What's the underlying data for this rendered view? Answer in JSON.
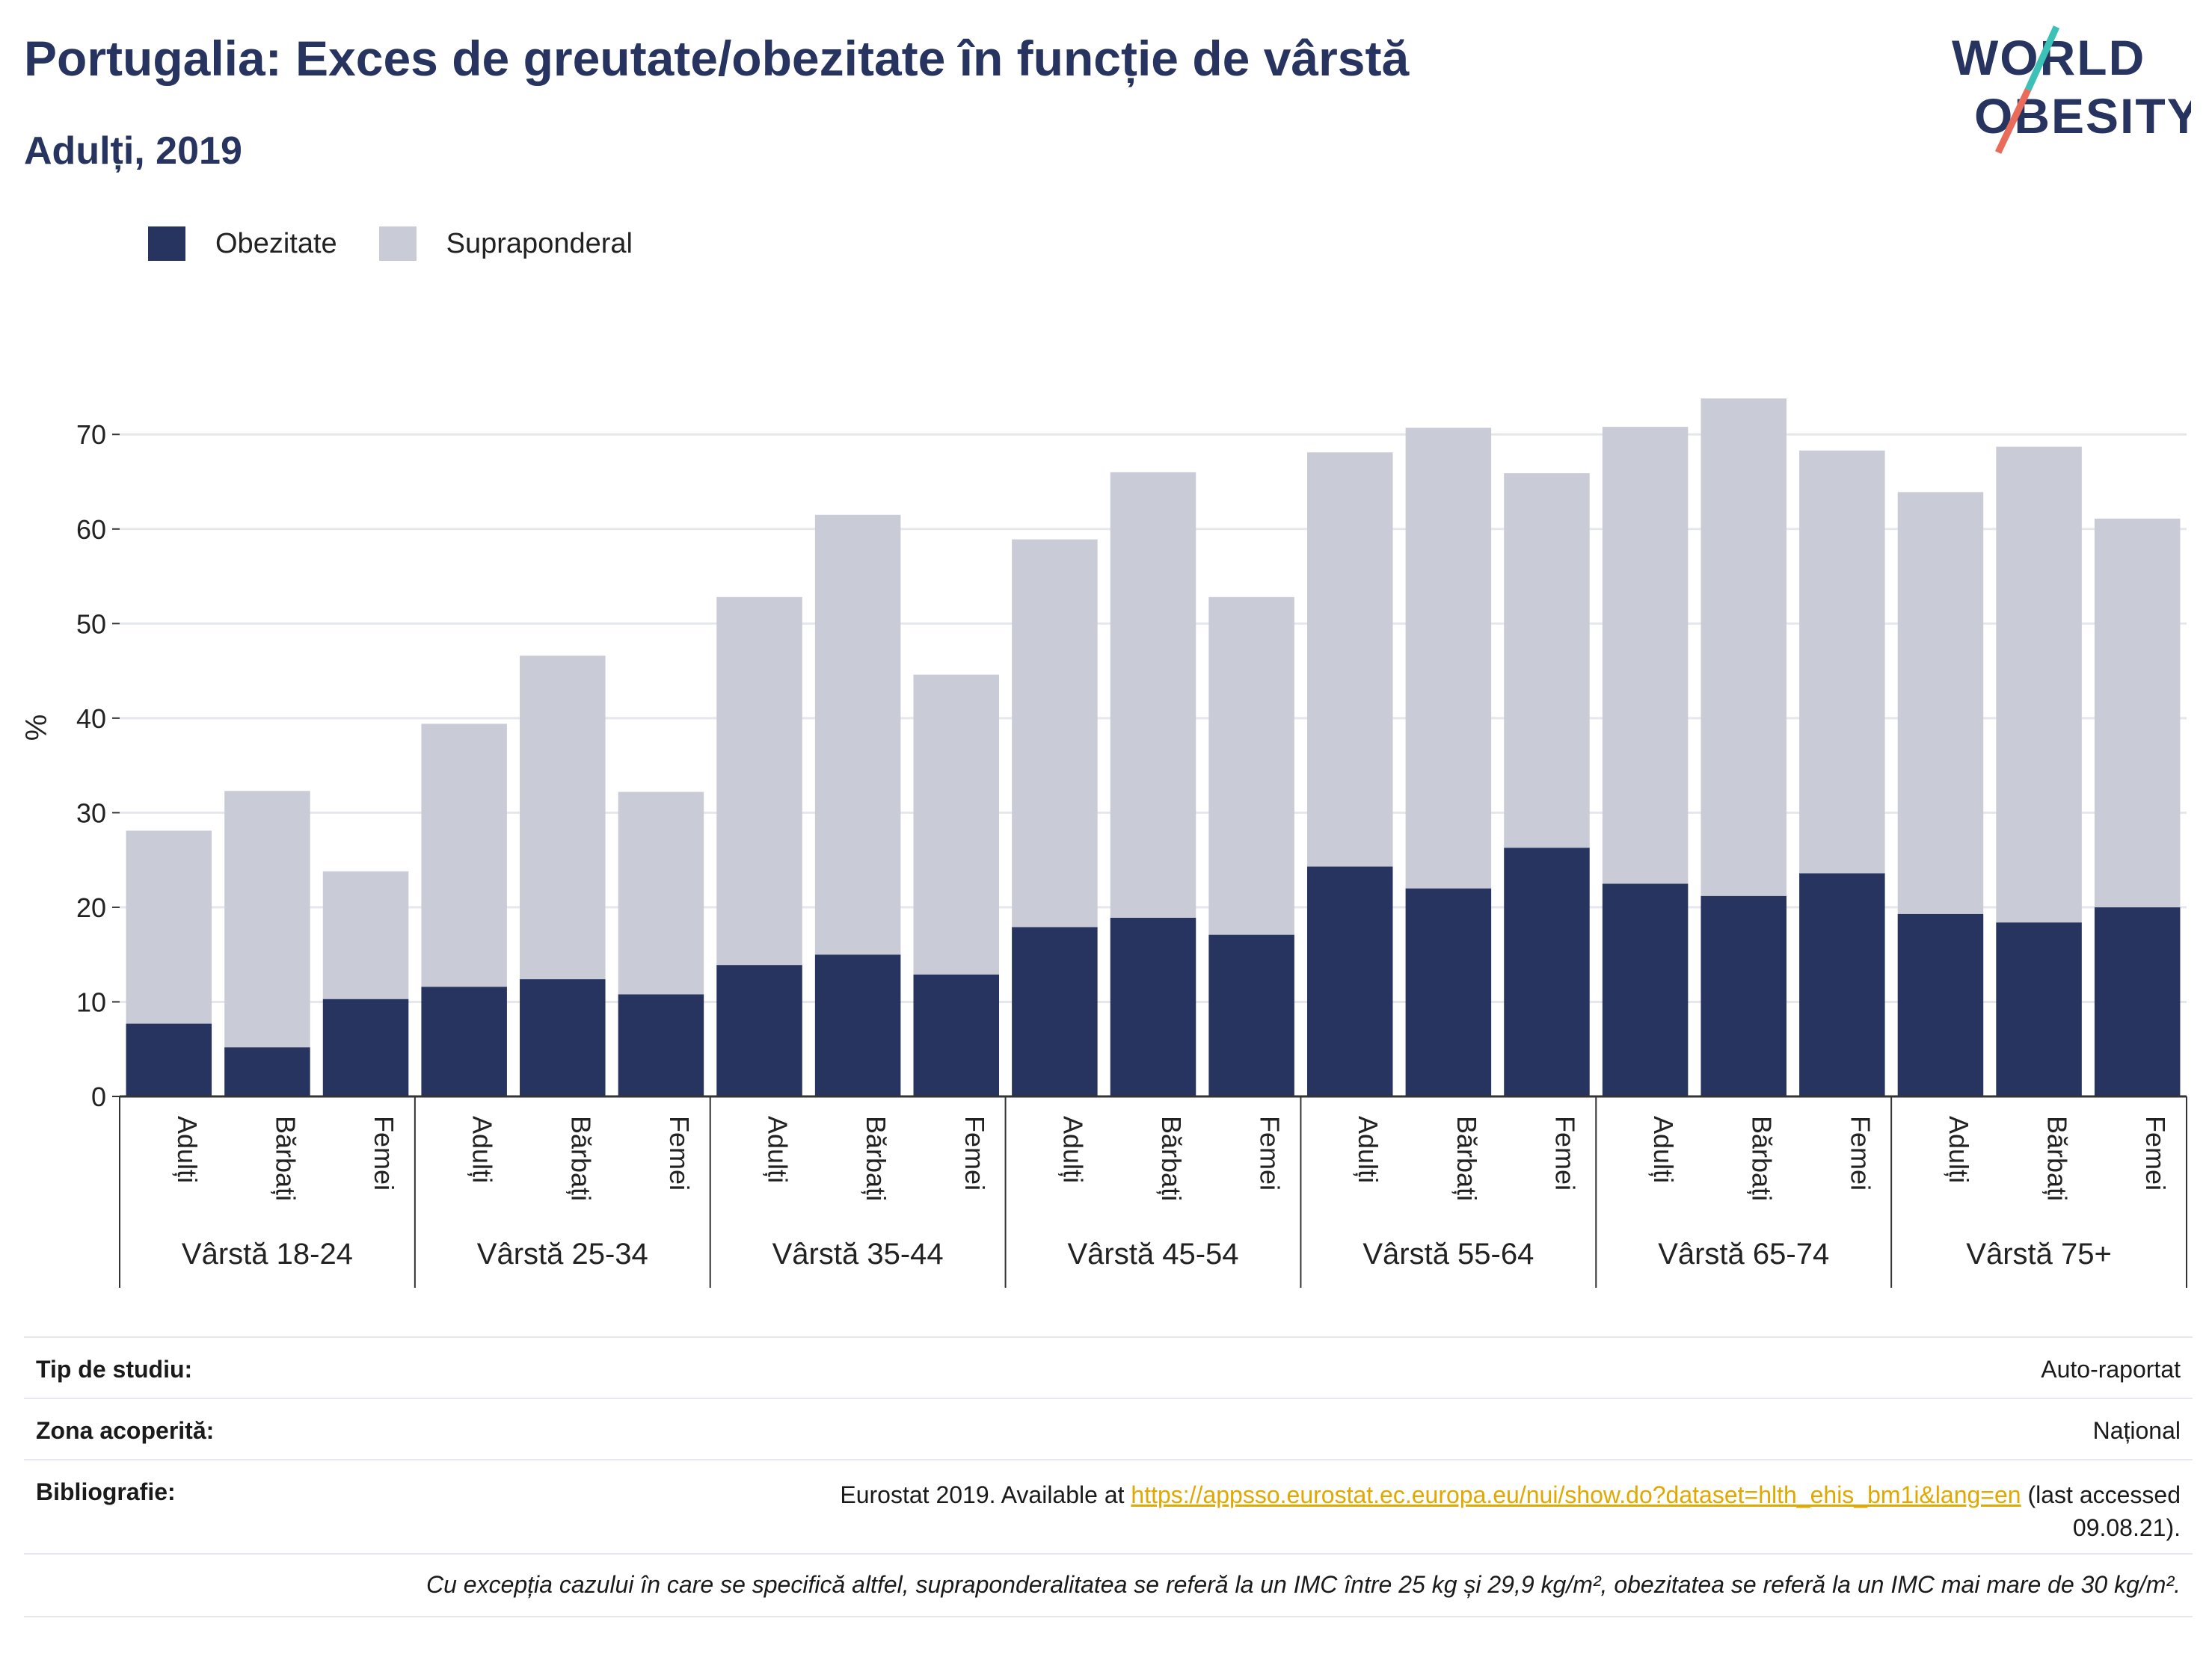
{
  "header": {
    "title": "Portugalia: Exces de greutate/obezitate în funcție de vârstă",
    "subtitle": "Adulți, 2019"
  },
  "logo": {
    "line1": "WORLD",
    "line2": "OBESITY"
  },
  "legend": [
    {
      "label": "Obezitate",
      "color": "#283460"
    },
    {
      "label": "Supraponderal",
      "color": "#c9cbd7"
    }
  ],
  "chart_data": {
    "type": "bar",
    "stacked": true,
    "ylabel": "%",
    "ylim": [
      0,
      78
    ],
    "yticks": [
      0,
      10,
      20,
      30,
      40,
      50,
      60,
      70
    ],
    "grid": true,
    "legend_position": "top-left",
    "groups": [
      "Vârstă 18-24",
      "Vârstă 25-34",
      "Vârstă 35-44",
      "Vârstă 45-54",
      "Vârstă 55-64",
      "Vârstă 65-74",
      "Vârstă 75+"
    ],
    "subcategories": [
      "Adulți",
      "Bărbați",
      "Femei"
    ],
    "series": [
      {
        "name": "Obezitate",
        "color": "#283460",
        "values": [
          7.7,
          5.2,
          10.3,
          11.6,
          12.4,
          10.8,
          13.9,
          15.0,
          12.9,
          17.9,
          18.9,
          17.1,
          24.3,
          22.0,
          26.3,
          22.5,
          21.2,
          23.6,
          19.3,
          18.4,
          20.0
        ]
      },
      {
        "name": "Supraponderal",
        "color": "#c9cbd7",
        "values": [
          20.4,
          27.1,
          13.5,
          27.8,
          34.2,
          21.4,
          38.9,
          46.5,
          31.7,
          41.0,
          47.1,
          35.7,
          43.8,
          48.7,
          39.6,
          48.3,
          52.6,
          44.7,
          44.6,
          50.3,
          41.1
        ]
      }
    ]
  },
  "info": {
    "study_type_label": "Tip de studiu:",
    "study_type_value": "Auto-raportat",
    "coverage_label": "Zona acoperită:",
    "coverage_value": "Național",
    "bibliography_label": "Bibliografie:",
    "bibliography_prefix": "Eurostat 2019. Available at",
    "bibliography_link": "https://appsso.eurostat.ec.europa.eu/nui/show.do?dataset=hlth_ehis_bm1i&lang=en",
    "bibliography_suffix": "(last accessed",
    "bibliography_date": "09.08.21).",
    "note": "Cu excepția cazului în care se specifică altfel, supraponderalitatea se referă la un IMC între 25 kg și 29,9 kg/m², obezitatea se referă la un IMC mai mare de 30 kg/m²."
  }
}
